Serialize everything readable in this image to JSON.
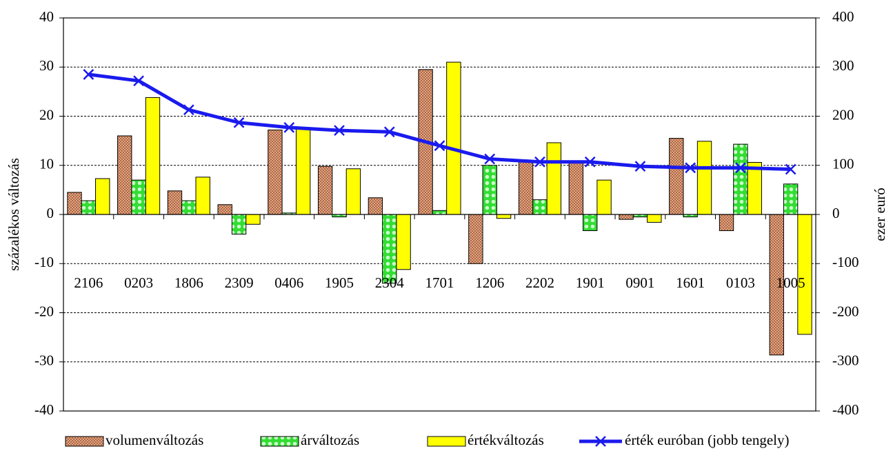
{
  "chart_data": {
    "type": "bar",
    "categories": [
      "2106",
      "0203",
      "1806",
      "2309",
      "0406",
      "1905",
      "2304",
      "1701",
      "1206",
      "2202",
      "1901",
      "0901",
      "1601",
      "0103",
      "1005"
    ],
    "series": [
      {
        "name": "volumenváltozás",
        "color": "#b5653c",
        "values": [
          4.5,
          16,
          4.8,
          2,
          17.2,
          9.8,
          3.4,
          29.5,
          -10,
          11,
          10.5,
          -1,
          15.5,
          -3.3,
          -28.6
        ]
      },
      {
        "name": "árváltozás",
        "color": "#33dd33",
        "values": [
          2.8,
          7,
          2.8,
          -4,
          0.3,
          -0.5,
          -14,
          0.8,
          10,
          3,
          -3.3,
          -0.5,
          -0.5,
          14.3,
          6.2
        ]
      },
      {
        "name": "értékváltozás",
        "color": "#ffff00",
        "values": [
          7.3,
          23.8,
          7.6,
          -2,
          17.5,
          9.3,
          -11.2,
          31,
          -0.8,
          14.6,
          7,
          -1.6,
          14.9,
          10.6,
          -24.4
        ]
      },
      {
        "name": "érték euróban (jobb tengely)",
        "color": "#1a1aee",
        "type": "line",
        "axis": "y2",
        "values": [
          285,
          272,
          213,
          187,
          177,
          171,
          168,
          140,
          113,
          107,
          107,
          98,
          95,
          95,
          92
        ]
      }
    ],
    "ylabel": "százalékos változás",
    "y2label": "ezer euró",
    "ylim": [
      -40,
      40
    ],
    "yticks": [
      -40,
      -30,
      -20,
      -10,
      0,
      10,
      20,
      30,
      40
    ],
    "y2lim": [
      -400,
      400
    ],
    "y2ticks": [
      -400,
      -300,
      -200,
      -100,
      0,
      100,
      200,
      300,
      400
    ],
    "grid": true,
    "legend": "bottom"
  }
}
